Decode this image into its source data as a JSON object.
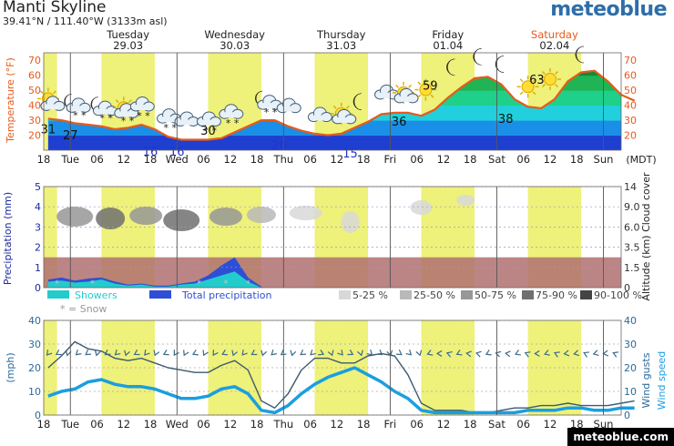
{
  "header": {
    "location": "Manti Skyline",
    "coordinates": "39.41°N / 111.40°W (3133m asl)",
    "brand": "meteoblue",
    "credit": "meteoblue.com"
  },
  "colors": {
    "day_band": "#eef17a",
    "temperature_line": "#e85a1a",
    "precip_total": "#2d4fd6",
    "precip_showers": "#22cccc",
    "wind_speed": "#1a9fe0",
    "wind_gust": "#3c5a6e",
    "no_cloud_data": "#b07070"
  },
  "time_axis": {
    "days": [
      {
        "name": "Tuesday",
        "date": "29.03"
      },
      {
        "name": "Wednesday",
        "date": "30.03"
      },
      {
        "name": "Thursday",
        "date": "31.03"
      },
      {
        "name": "Friday",
        "date": "01.04"
      },
      {
        "name": "Saturday",
        "date": "02.04"
      }
    ],
    "ticks": [
      "18",
      "Tue",
      "06",
      "12",
      "18",
      "Wed",
      "06",
      "12",
      "18",
      "Thu",
      "06",
      "12",
      "18",
      "Fri",
      "06",
      "12",
      "18",
      "Sat",
      "06",
      "12",
      "18",
      "Sun"
    ],
    "timezone": "(MDT)"
  },
  "chart_data": [
    {
      "type": "area",
      "name": "temperature",
      "ylabel": "Temperature (°F)",
      "ylim": [
        10,
        75
      ],
      "yticks": [
        20,
        30,
        40,
        50,
        60,
        70
      ],
      "x_hours": [
        0,
        3,
        6,
        9,
        12,
        15,
        18,
        21,
        24,
        27,
        30,
        33,
        36,
        39,
        42,
        45,
        48,
        51,
        54,
        57,
        60,
        63,
        66,
        69,
        72,
        75,
        78,
        81,
        84,
        87,
        90,
        93,
        96,
        99,
        102,
        105,
        108,
        111,
        114,
        117,
        120,
        123,
        126,
        129,
        132
      ],
      "temperature_f": [
        31,
        30,
        28,
        27,
        26,
        24,
        25,
        27,
        24,
        19,
        17,
        17,
        17,
        18,
        22,
        26,
        30,
        30,
        26,
        23,
        21,
        20,
        21,
        25,
        29,
        34,
        35,
        35,
        33,
        37,
        45,
        52,
        58,
        59,
        54,
        44,
        39,
        38,
        44,
        56,
        62,
        63,
        56,
        47,
        43
      ],
      "labels": [
        {
          "x_hour": 0,
          "value": "31"
        },
        {
          "x_hour": 5,
          "value": "27"
        },
        {
          "x_hour": 23,
          "value": "16"
        },
        {
          "x_hour": 29,
          "value": "16"
        },
        {
          "x_hour": 36,
          "value": "30"
        },
        {
          "x_hour": 52,
          "value": "20"
        },
        {
          "x_hour": 68,
          "value": "15"
        },
        {
          "x_hour": 79,
          "value": "36"
        },
        {
          "x_hour": 86,
          "value": "59"
        },
        {
          "x_hour": 103,
          "value": "38"
        },
        {
          "x_hour": 110,
          "value": "63"
        }
      ],
      "weather_icons": [
        {
          "x_hour": 0,
          "icon": "partly-cloudy-sun-icon"
        },
        {
          "x_hour": 6,
          "icon": "cloud-moon-snow-icon"
        },
        {
          "x_hour": 12,
          "icon": "cloud-moon-snow-icon"
        },
        {
          "x_hour": 17,
          "icon": "cloud-sun-snow-icon"
        },
        {
          "x_hour": 21,
          "icon": "cloud-snow-icon"
        },
        {
          "x_hour": 27,
          "icon": "cloud-snow-icon"
        },
        {
          "x_hour": 31,
          "icon": "cloud-icon"
        },
        {
          "x_hour": 36,
          "icon": "cloud-snow-icon"
        },
        {
          "x_hour": 41,
          "icon": "cloud-snow-icon"
        },
        {
          "x_hour": 49,
          "icon": "cloud-moon-snow-icon"
        },
        {
          "x_hour": 54,
          "icon": "cloud-icon"
        },
        {
          "x_hour": 61,
          "icon": "cloud-icon"
        },
        {
          "x_hour": 66,
          "icon": "cloud-sun-icon"
        },
        {
          "x_hour": 70,
          "icon": "moon-icon"
        },
        {
          "x_hour": 76,
          "icon": "cloud-icon"
        },
        {
          "x_hour": 80,
          "icon": "cloud-sun-icon"
        },
        {
          "x_hour": 85,
          "icon": "sun-icon"
        },
        {
          "x_hour": 91,
          "icon": "moon-icon"
        },
        {
          "x_hour": 97,
          "icon": "moon-icon"
        },
        {
          "x_hour": 102,
          "icon": "moon-icon"
        },
        {
          "x_hour": 108,
          "icon": "sun-icon"
        },
        {
          "x_hour": 113,
          "icon": "sun-icon"
        },
        {
          "x_hour": 120,
          "icon": "moon-icon"
        }
      ]
    },
    {
      "type": "area",
      "name": "precipitation_and_clouds",
      "ylabel": "Precipitation (mm)",
      "ylim": [
        0,
        5
      ],
      "yticks": [
        0,
        1,
        2,
        3,
        4,
        5
      ],
      "right_label": "Altitude (km) Cloud cover",
      "right_ticks": [
        "14",
        "9.0",
        "6.0",
        "3.5",
        "1.5",
        "0"
      ],
      "x_hours": [
        0,
        3,
        6,
        9,
        12,
        15,
        18,
        21,
        24,
        27,
        30,
        33,
        36,
        39,
        42,
        45,
        48
      ],
      "total_mm": [
        0.4,
        0.5,
        0.35,
        0.45,
        0.5,
        0.3,
        0.15,
        0.2,
        0.1,
        0.1,
        0.2,
        0.3,
        0.6,
        1.1,
        1.5,
        0.5,
        0.05
      ],
      "showers_mm": [
        0.3,
        0.35,
        0.25,
        0.3,
        0.4,
        0.2,
        0.1,
        0.15,
        0.05,
        0.05,
        0.15,
        0.2,
        0.4,
        0.6,
        0.8,
        0.3,
        0.0
      ],
      "snow_marks_hours": [
        2,
        10,
        34,
        40,
        45
      ],
      "legend": [
        {
          "label": "Showers",
          "color": "#22cccc"
        },
        {
          "label": "Total precipitation",
          "color": "#2d4fd6"
        },
        {
          "label": "* = Snow",
          "color": "#bbbbbb"
        }
      ],
      "cloud_legend": [
        {
          "label": "5-25 %",
          "color": "#d8d8d8"
        },
        {
          "label": "25-50 %",
          "color": "#b9b9b9"
        },
        {
          "label": "50-75 %",
          "color": "#979797"
        },
        {
          "label": "75-90 %",
          "color": "#707070"
        },
        {
          "label": "90-100 %",
          "color": "#444444"
        }
      ]
    },
    {
      "type": "line",
      "name": "wind",
      "ylabel": "(mph)",
      "ylim": [
        0,
        40
      ],
      "yticks": [
        0,
        10,
        20,
        30,
        40
      ],
      "right_label": "Wind gusts Wind speed",
      "x_hours": [
        0,
        3,
        6,
        9,
        12,
        15,
        18,
        21,
        24,
        27,
        30,
        33,
        36,
        39,
        42,
        45,
        48,
        51,
        54,
        57,
        60,
        63,
        66,
        69,
        72,
        75,
        78,
        81,
        84,
        87,
        90,
        93,
        96,
        99,
        102,
        105,
        108,
        111,
        114,
        117,
        120,
        123,
        126,
        129,
        132
      ],
      "series": [
        {
          "name": "Wind gusts",
          "values": [
            20,
            25,
            31,
            28,
            27,
            24,
            23,
            24,
            22,
            20,
            19,
            18,
            18,
            21,
            23,
            19,
            6,
            3,
            9,
            19,
            24,
            24,
            22,
            22,
            25,
            26,
            25,
            17,
            5,
            2,
            2,
            2,
            1,
            1,
            2,
            3,
            3,
            4,
            4,
            5,
            4,
            4,
            4,
            5,
            6
          ]
        },
        {
          "name": "Wind speed",
          "values": [
            8,
            10,
            11,
            14,
            15,
            13,
            12,
            12,
            11,
            9,
            7,
            7,
            8,
            11,
            12,
            9,
            2,
            1,
            4,
            9,
            13,
            16,
            18,
            20,
            17,
            14,
            10,
            7,
            2,
            1,
            1,
            1,
            1,
            1,
            1,
            1,
            2,
            2,
            2,
            3,
            3,
            2,
            2,
            3,
            3
          ]
        }
      ],
      "direction_arrows": "row of wind direction arrows along the 26 mph level"
    }
  ]
}
